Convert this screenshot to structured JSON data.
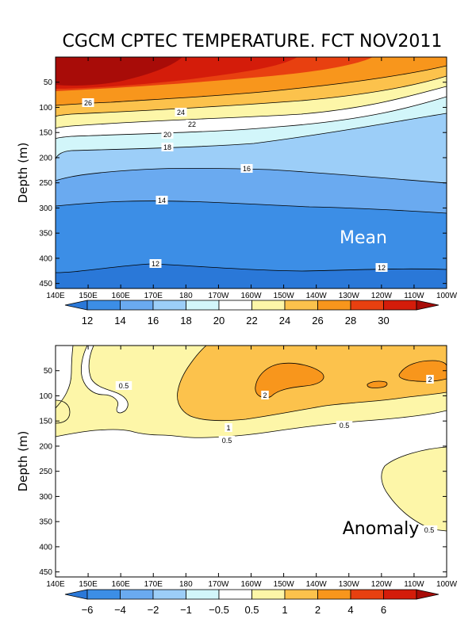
{
  "title": "CGCM CPTEC TEMPERATURE. FCT NOV2011",
  "chart_data": [
    {
      "type": "contour",
      "panel": "Mean",
      "ylabel": "Depth (m)",
      "xlim": [
        "140E",
        "100W"
      ],
      "ylim": [
        0,
        460
      ],
      "xticks": [
        "140E",
        "150E",
        "160E",
        "170E",
        "180",
        "170W",
        "160W",
        "150W",
        "140W",
        "130W",
        "120W",
        "110W",
        "100W"
      ],
      "yticks": [
        50,
        100,
        150,
        200,
        250,
        300,
        350,
        400,
        450
      ],
      "contour_labels": [
        "26",
        "24",
        "22",
        "20",
        "18",
        "16",
        "14",
        "12",
        "12"
      ],
      "colorbar": {
        "levels": [
          "12",
          "14",
          "16",
          "18",
          "20",
          "22",
          "24",
          "26",
          "28",
          "30"
        ],
        "colors": [
          "#2a78d8",
          "#3c8ee6",
          "#6aaaf0",
          "#9ccef8",
          "#d2f6fa",
          "#ffffff",
          "#fdf6a8",
          "#fcc24c",
          "#f8961c",
          "#e84010",
          "#d41c0a",
          "#a80c08"
        ]
      }
    },
    {
      "type": "contour",
      "panel": "Anomaly",
      "ylabel": "Depth (m)",
      "xlim": [
        "140E",
        "100W"
      ],
      "ylim": [
        0,
        460
      ],
      "xticks": [
        "140E",
        "150E",
        "160E",
        "170E",
        "180",
        "170W",
        "160W",
        "150W",
        "140W",
        "130W",
        "120W",
        "110W",
        "100W"
      ],
      "yticks": [
        50,
        100,
        150,
        200,
        250,
        300,
        350,
        400,
        450
      ],
      "contour_labels": [
        "0.5",
        "2",
        "1",
        "0.5",
        "0.5",
        "2",
        "0.5"
      ],
      "colorbar": {
        "levels": [
          "-6",
          "-4",
          "-2",
          "-1",
          "-0.5",
          "0.5",
          "1",
          "2",
          "4",
          "6"
        ],
        "colors": [
          "#2a78d8",
          "#3c8ee6",
          "#6aaaf0",
          "#9ccef8",
          "#d2f6fa",
          "#ffffff",
          "#fdf6a8",
          "#fcc24c",
          "#f8961c",
          "#e84010",
          "#d41c0a",
          "#a80c08"
        ]
      }
    }
  ]
}
